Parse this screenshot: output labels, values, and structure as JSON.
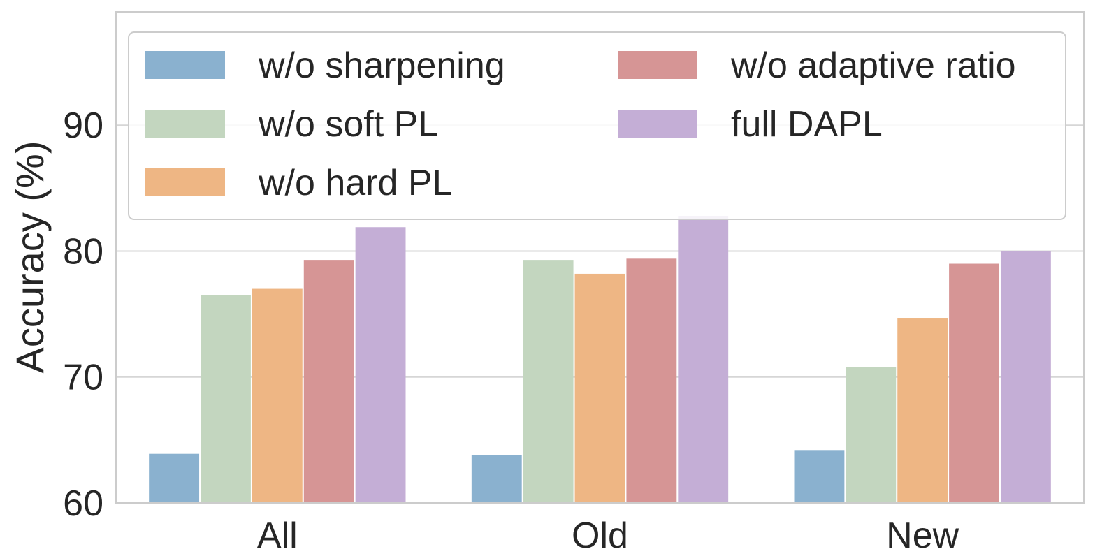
{
  "chart_data": {
    "type": "bar",
    "title": "",
    "xlabel": "",
    "ylabel": "Accuracy (%)",
    "ylim": [
      60,
      99
    ],
    "yticks": [
      60,
      70,
      80,
      90
    ],
    "grid": true,
    "legend_placement": "top",
    "categories": [
      "All",
      "Old",
      "New"
    ],
    "series": [
      {
        "name": "w/o sharpening",
        "color": "#8ab1cf",
        "values": [
          63.9,
          63.8,
          64.2
        ]
      },
      {
        "name": "w/o soft PL",
        "color": "#c3d6bf",
        "values": [
          76.5,
          79.3,
          70.8
        ]
      },
      {
        "name": "w/o hard PL",
        "color": "#eeb684",
        "values": [
          77.0,
          78.2,
          74.7
        ]
      },
      {
        "name": "w/o adaptive ratio",
        "color": "#d69595",
        "values": [
          79.3,
          79.4,
          79.0
        ]
      },
      {
        "name": "full DAPL",
        "color": "#c4aed6",
        "values": [
          81.9,
          82.8,
          80.0
        ]
      }
    ]
  }
}
